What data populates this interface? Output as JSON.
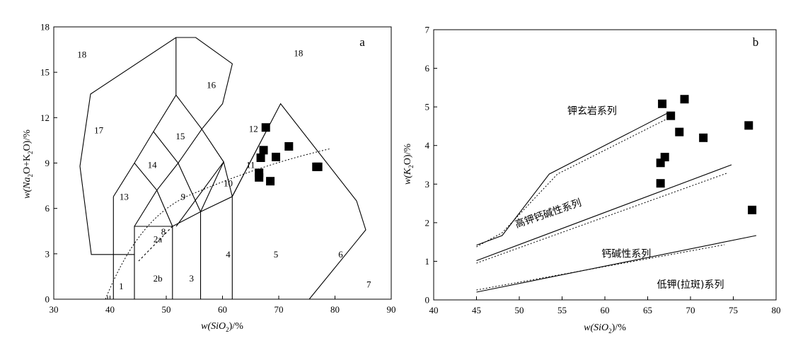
{
  "chart_data": [
    {
      "panel_label": "a",
      "type": "scatter",
      "xlabel": {
        "pre": "w(SiO",
        "sub": "2",
        "post": ")/%"
      },
      "ylabel": {
        "pre": "w(Na",
        "sub1": "2",
        "mid": "O+K",
        "sub2": "2",
        "post": "O)/%"
      },
      "xlim": [
        30,
        90
      ],
      "ylim": [
        0,
        18
      ],
      "xticks": [
        30,
        40,
        50,
        60,
        70,
        80,
        90
      ],
      "yticks": [
        0,
        3,
        6,
        9,
        12,
        15,
        18
      ],
      "field_labels": [
        {
          "text": "18",
          "x": 35,
          "y": 16.2
        },
        {
          "text": "18",
          "x": 73.5,
          "y": 16.3
        },
        {
          "text": "16",
          "x": 58,
          "y": 14.2
        },
        {
          "text": "17",
          "x": 38,
          "y": 11.2
        },
        {
          "text": "15",
          "x": 52.5,
          "y": 10.8
        },
        {
          "text": "12",
          "x": 65.5,
          "y": 11.3
        },
        {
          "text": "14",
          "x": 47.5,
          "y": 8.9
        },
        {
          "text": "11",
          "x": 65,
          "y": 8.9
        },
        {
          "text": "10",
          "x": 61,
          "y": 7.7
        },
        {
          "text": "13",
          "x": 42.5,
          "y": 6.8
        },
        {
          "text": "9",
          "x": 53,
          "y": 6.8
        },
        {
          "text": "8",
          "x": 49.5,
          "y": 4.5
        },
        {
          "text": "2a",
          "x": 48.5,
          "y": 4.0
        },
        {
          "text": "4",
          "x": 61,
          "y": 3.0
        },
        {
          "text": "5",
          "x": 69.5,
          "y": 3.0
        },
        {
          "text": "6",
          "x": 81,
          "y": 3.0
        },
        {
          "text": "1",
          "x": 42,
          "y": 0.9
        },
        {
          "text": "2b",
          "x": 48.5,
          "y": 1.4
        },
        {
          "text": "3",
          "x": 54.5,
          "y": 1.4
        },
        {
          "text": "7",
          "x": 86,
          "y": 1.0
        }
      ],
      "series": [
        {
          "x": [
            67.7,
            67.3,
            66.8,
            69.5,
            71.8,
            66.5,
            66.5,
            68.5,
            76.7,
            77.0
          ],
          "y": [
            11.35,
            9.85,
            9.35,
            9.4,
            10.1,
            8.35,
            8.05,
            7.8,
            8.75,
            8.75
          ]
        }
      ]
    },
    {
      "panel_label": "b",
      "type": "scatter",
      "xlabel": {
        "pre": "w(SiO",
        "sub": "2",
        "post": ")/%"
      },
      "ylabel": {
        "pre": "w(K",
        "sub": "2",
        "post": "O)/%"
      },
      "xlim": [
        40,
        80
      ],
      "ylim": [
        0,
        7
      ],
      "xticks": [
        40,
        45,
        50,
        55,
        60,
        65,
        70,
        75,
        80
      ],
      "yticks": [
        0,
        1,
        2,
        3,
        4,
        5,
        6,
        7
      ],
      "series_labels": [
        {
          "text": "钾玄岩系列",
          "x": 58.5,
          "y": 4.9,
          "angle": 0
        },
        {
          "text": "高钾钙碱性系列",
          "x": 53.5,
          "y": 2.25,
          "angle": -19
        },
        {
          "text": "钙碱性系列",
          "x": 62.5,
          "y": 1.2,
          "angle": 0
        },
        {
          "text": "低钾(拉斑)系列",
          "x": 70,
          "y": 0.4,
          "angle": 0
        }
      ],
      "series": [
        {
          "x": [
            66.7,
            69.3,
            67.7,
            68.7,
            71.5,
            76.8,
            66.5,
            67.0,
            66.5,
            77.2
          ],
          "y": [
            5.08,
            5.2,
            4.77,
            4.35,
            4.2,
            4.52,
            3.55,
            3.7,
            3.02,
            2.33
          ]
        }
      ]
    }
  ]
}
